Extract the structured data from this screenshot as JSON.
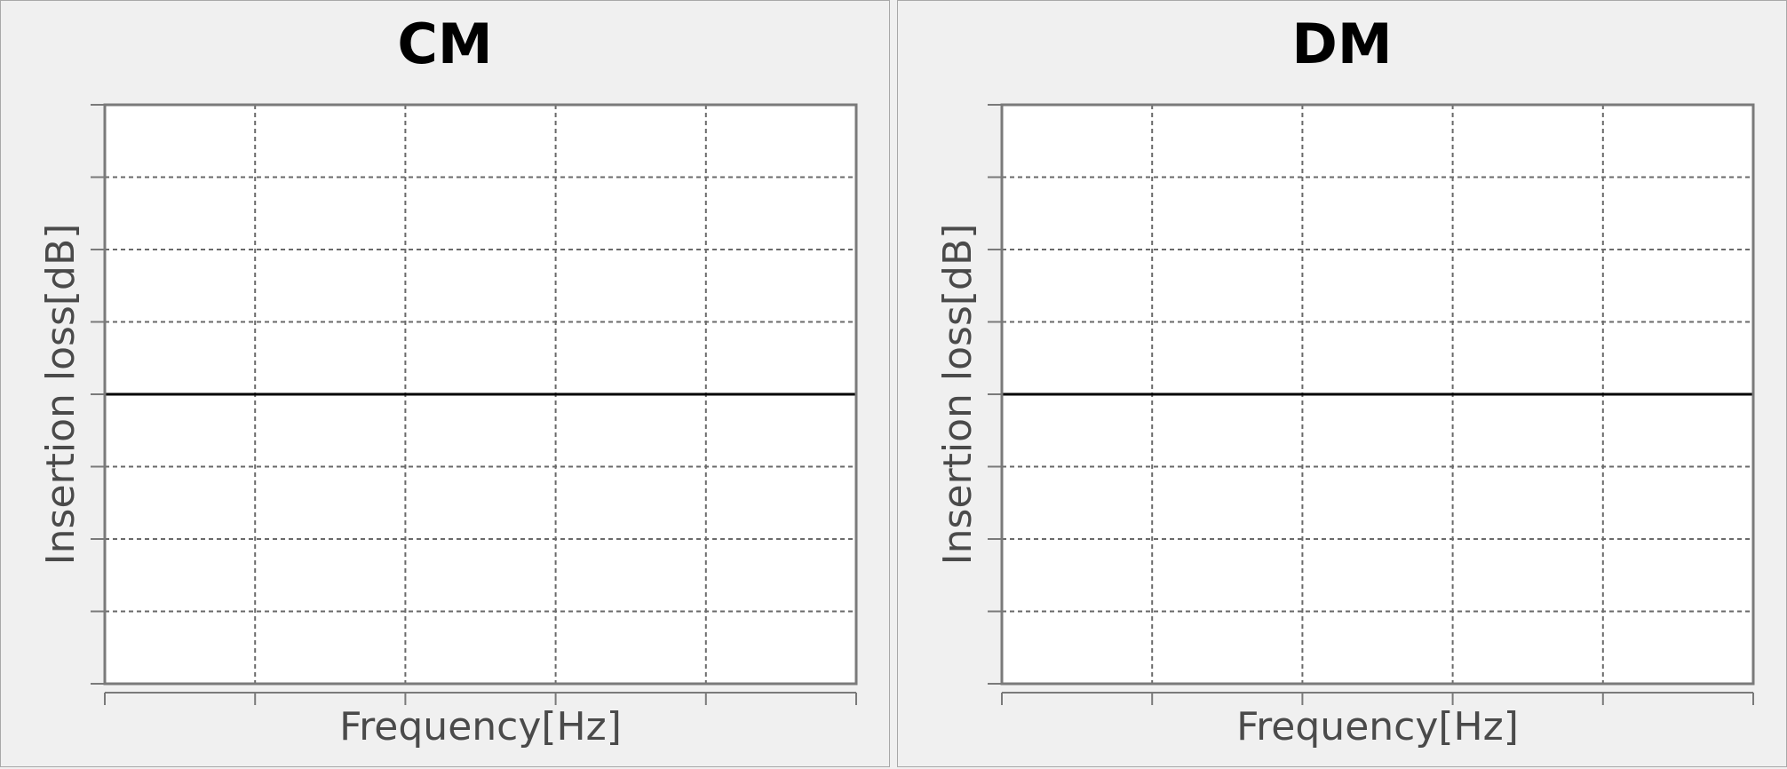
{
  "chart_data": [
    {
      "type": "line",
      "title": "CM",
      "xlabel": "Frequency[Hz]",
      "ylabel": "Insertion loss[dB]",
      "grid": true,
      "x_gridlines": 5,
      "y_gridlines": 8,
      "series": [
        {
          "x": [
            0,
            1
          ],
          "y": [
            0,
            0
          ],
          "color": "#000000"
        }
      ],
      "xlim": [
        0,
        1
      ],
      "ylim": [
        -1,
        1
      ]
    },
    {
      "type": "line",
      "title": "DM",
      "xlabel": "Frequency[Hz]",
      "ylabel": "Insertion loss[dB]",
      "grid": true,
      "x_gridlines": 5,
      "y_gridlines": 8,
      "series": [
        {
          "x": [
            0,
            1
          ],
          "y": [
            0,
            0
          ],
          "color": "#000000"
        }
      ],
      "xlim": [
        0,
        1
      ],
      "ylim": [
        -1,
        1
      ]
    }
  ],
  "colors": {
    "background": "#f0f0f0",
    "plot_area": "#ffffff",
    "axis": "#7a7a7a",
    "grid": "#6a6a6a",
    "line": "#000000"
  }
}
